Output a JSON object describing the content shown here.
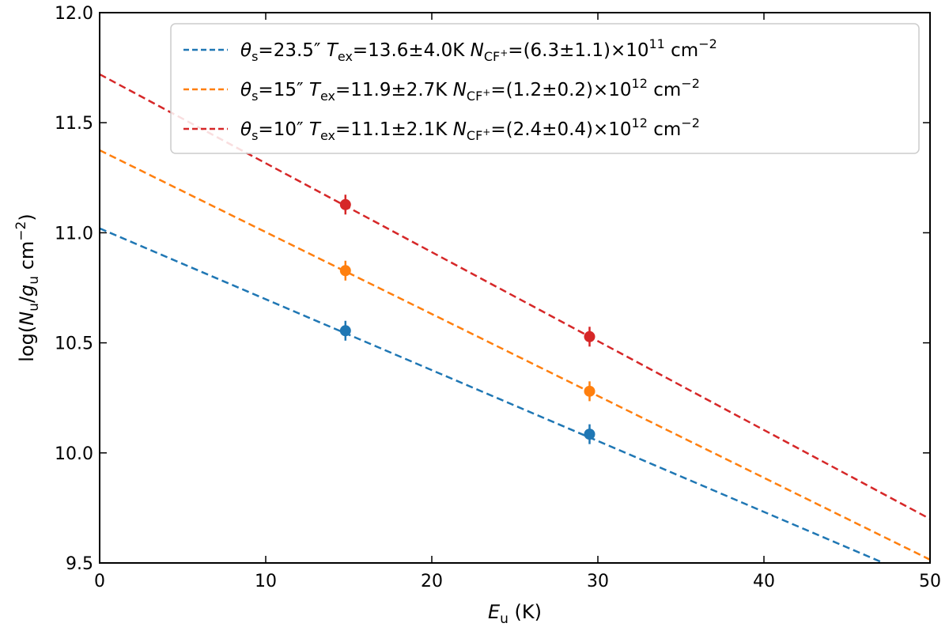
{
  "chart_data": {
    "type": "scatter",
    "title": "",
    "xlabel": {
      "symbol": "E",
      "sub": "u",
      "unit": " (K)"
    },
    "ylabel": {
      "pre": "log(",
      "num": "N",
      "num_sub": "u",
      "slash": "/",
      "den": "g",
      "den_sub": "u",
      "unit": " cm",
      "exp": "−2",
      "post": ")"
    },
    "xlim": [
      0,
      50
    ],
    "ylim": [
      9.5,
      12.0
    ],
    "xticks": [
      0,
      10,
      20,
      30,
      40,
      50
    ],
    "yticks": [
      9.5,
      10.0,
      10.5,
      11.0,
      11.5,
      12.0
    ],
    "xtick_labels": [
      "0",
      "10",
      "20",
      "30",
      "40",
      "50"
    ],
    "ytick_labels": [
      "9.5",
      "10.0",
      "10.5",
      "11.0",
      "11.5",
      "12.0"
    ],
    "legend_position": "top-right",
    "series": [
      {
        "color": "#1f77b4",
        "fit": {
          "intercept": 11.02,
          "slope": -0.0322
        },
        "points": [
          {
            "x": 14.8,
            "y": 10.555,
            "yerr": 0.045
          },
          {
            "x": 29.5,
            "y": 10.085,
            "yerr": 0.045
          }
        ],
        "legend": {
          "theta": "θ",
          "theta_sub": "s",
          "theta_val": "=23.5″ ",
          "T": "T",
          "T_sub": "ex",
          "T_val": "=13.6±4.0K ",
          "N": "N",
          "N_sub": "CF",
          "N_sub_sup": "+",
          "N_val": "=(6.3±1.1)×10",
          "N_exp": "11",
          "unit": " cm",
          "unit_exp": "−2"
        }
      },
      {
        "color": "#ff7f0e",
        "fit": {
          "intercept": 11.375,
          "slope": -0.0372
        },
        "points": [
          {
            "x": 14.8,
            "y": 10.828,
            "yerr": 0.045
          },
          {
            "x": 29.5,
            "y": 10.28,
            "yerr": 0.045
          }
        ],
        "legend": {
          "theta": "θ",
          "theta_sub": "s",
          "theta_val": "=15″ ",
          "T": "T",
          "T_sub": "ex",
          "T_val": "=11.9±2.7K ",
          "N": "N",
          "N_sub": "CF",
          "N_sub_sup": "+",
          "N_val": "=(1.2±0.2)×10",
          "N_exp": "12",
          "unit": " cm",
          "unit_exp": "−2"
        }
      },
      {
        "color": "#d62728",
        "fit": {
          "intercept": 11.72,
          "slope": -0.0404
        },
        "points": [
          {
            "x": 14.8,
            "y": 11.128,
            "yerr": 0.045
          },
          {
            "x": 29.5,
            "y": 10.528,
            "yerr": 0.045
          }
        ],
        "legend": {
          "theta": "θ",
          "theta_sub": "s",
          "theta_val": "=10″ ",
          "T": "T",
          "T_sub": "ex",
          "T_val": "=11.1±2.1K ",
          "N": "N",
          "N_sub": "CF",
          "N_sub_sup": "+",
          "N_val": "=(2.4±0.4)×10",
          "N_exp": "12",
          "unit": " cm",
          "unit_exp": "−2"
        }
      }
    ]
  }
}
